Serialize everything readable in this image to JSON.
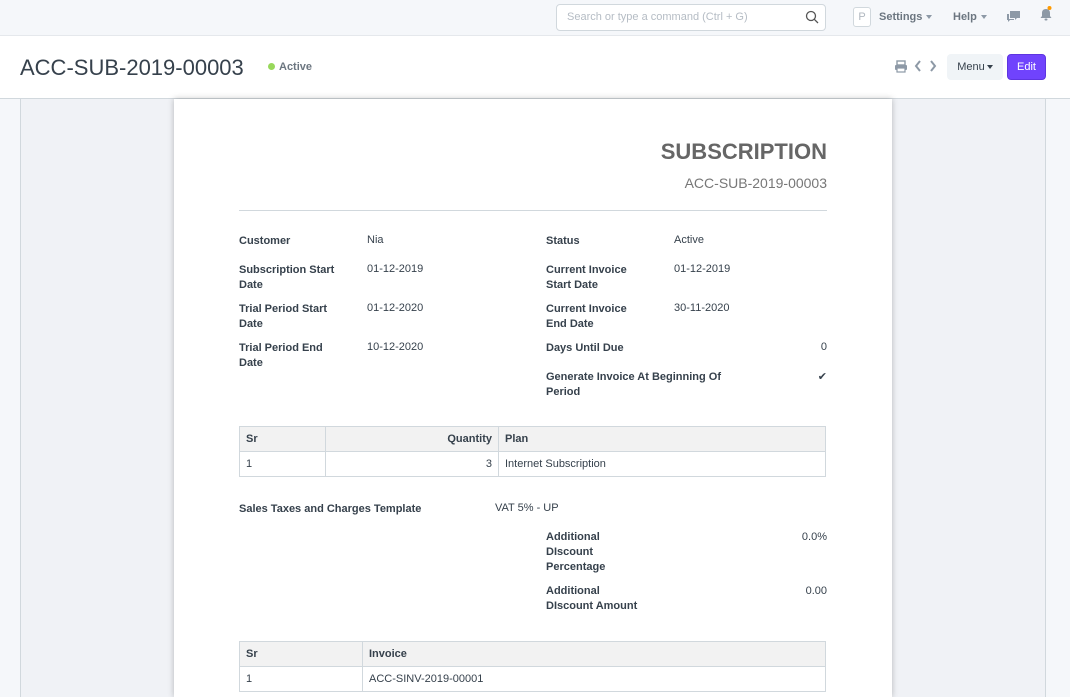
{
  "navbar": {
    "search_placeholder": "Search or type a command (Ctrl + G)",
    "avatar_letter": "P",
    "settings": "Settings",
    "help": "Help"
  },
  "header": {
    "title": "ACC-SUB-2019-00003",
    "status": "Active",
    "status_color": "#98d85b",
    "menu": "Menu",
    "edit": "Edit",
    "accent": "#7043fd"
  },
  "doc": {
    "heading": "SUBSCRIPTION",
    "name": "ACC-SUB-2019-00003",
    "left": [
      {
        "label": "Customer",
        "value": "Nia"
      },
      {
        "label": "Subscription Start Date",
        "value": "01-12-2019"
      },
      {
        "label": "Trial Period Start Date",
        "value": "01-12-2020"
      },
      {
        "label": "Trial Period End Date",
        "value": "10-12-2020"
      }
    ],
    "right": [
      {
        "label": "Status",
        "value": "Active"
      },
      {
        "label": "Current Invoice Start Date",
        "value": "01-12-2019"
      },
      {
        "label": "Current Invoice End Date",
        "value": "30-11-2020"
      },
      {
        "label": "Days Until Due",
        "value": "0"
      },
      {
        "label": "Generate Invoice At Beginning Of Period",
        "value": "✔"
      }
    ],
    "plans": {
      "headers": [
        "Sr",
        "Quantity",
        "Plan"
      ],
      "rows": [
        [
          "1",
          "3",
          "Internet Subscription"
        ]
      ]
    },
    "tax_label": "Sales Taxes and Charges Template",
    "tax_value": "VAT 5% - UP",
    "disc_pct_label": "Additional DIscount Percentage",
    "disc_pct_value": "0.0%",
    "disc_amt_label": "Additional DIscount Amount",
    "disc_amt_value": "0.00",
    "invoices": {
      "headers": [
        "Sr",
        "Invoice"
      ],
      "rows": [
        [
          "1",
          "ACC-SINV-2019-00001"
        ]
      ]
    }
  }
}
